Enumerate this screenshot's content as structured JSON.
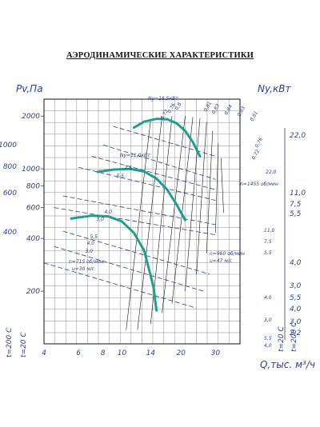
{
  "heading": "АЭРОДИНАМИЧЕСКИЕ ХАРАКТЕРИСТИКИ",
  "colors": {
    "ink": "#2b3f8c",
    "curve": "#1f9e8e",
    "frame": "#111111"
  },
  "chart_data": {
    "type": "line",
    "title": "АЭРОДИНАМИЧЕСКИЕ ХАРАКТЕРИСТИКИ",
    "xlabel": "Q,тыс. м³/ч",
    "ylabel_left": "Pv,Па",
    "ylabel_right": "Ny,кВт",
    "side_labels": [
      "t=200 C",
      "t=20 C",
      "t=20 C",
      "t=200 C"
    ],
    "x_ticks": [
      4,
      6,
      8,
      10,
      14,
      20,
      30
    ],
    "y_ticks_20C": [
      200,
      400,
      600,
      800,
      1000,
      2000
    ],
    "y_ticks_200C": [
      400,
      600,
      800,
      1000
    ],
    "grid": true,
    "series": [
      {
        "name": "n=1455 об/мин",
        "values": [
          [
            11.5,
            1720
          ],
          [
            13,
            1860
          ],
          [
            15,
            1930
          ],
          [
            17,
            1920
          ],
          [
            19,
            1820
          ],
          [
            21,
            1650
          ],
          [
            23,
            1420
          ],
          [
            25,
            1180
          ]
        ]
      },
      {
        "name": "n=960 об/мин",
        "values": [
          [
            7.5,
            960
          ],
          [
            9,
            990
          ],
          [
            11,
            1000
          ],
          [
            13,
            965
          ],
          [
            15,
            880
          ],
          [
            17,
            760
          ],
          [
            19,
            625
          ],
          [
            21,
            510
          ]
        ]
      },
      {
        "name": "n=715 об/мин",
        "values": [
          [
            5.5,
            520
          ],
          [
            7,
            540
          ],
          [
            8.5,
            535
          ],
          [
            10,
            500
          ],
          [
            11.5,
            430
          ],
          [
            13,
            340
          ],
          [
            14.5,
            210
          ],
          [
            15,
            155
          ]
        ]
      }
    ],
    "curve_labels": [
      "n=1455 об/мин",
      "n=960 об/мин",
      "n=715 об/мин",
      "u=47 м/с",
      "u=30 м/с"
    ],
    "efficiency_labels": [
      "0,72",
      "0,76",
      "0,8",
      "0,81",
      "0,83",
      "0,84",
      "0,83",
      "0,81",
      "0,76",
      "0,72"
    ],
    "power_line_labels_left": [
      "Ny=18,5кВт",
      "Ny=11,0кВт",
      "7,5",
      "5,5",
      "4,0",
      "3,0",
      "5,5",
      "4,0",
      "3,0"
    ],
    "power_line_labels_right": [
      "22,0",
      "11,0",
      "7,5",
      "5,5",
      "4,0",
      "3,0",
      "5,5",
      "4,0"
    ],
    "ny_ticks_upper": [
      "22,0",
      "11,0",
      "7,5",
      "5,5"
    ],
    "ny_ticks_middle": [
      "4,0",
      "3,0",
      "5,5",
      "4,0"
    ],
    "ny_ticks_lower": [
      "3,0",
      "2,2"
    ]
  }
}
